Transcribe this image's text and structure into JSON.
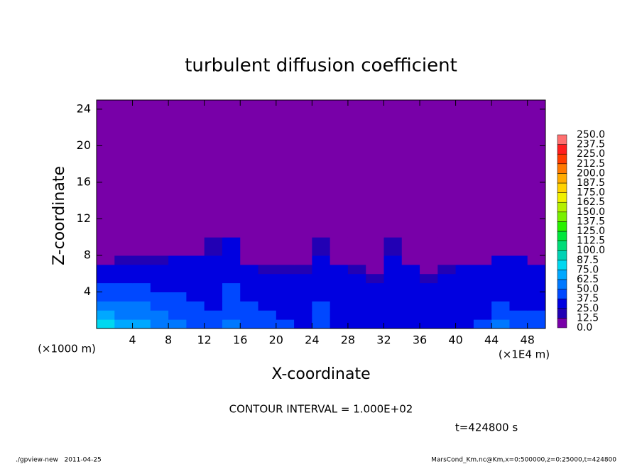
{
  "chart_data": {
    "type": "heatmap",
    "title": "turbulent diffusion coefficient",
    "x_label": "X-coordinate",
    "y_label": "Z-coordinate",
    "x_unit": "(×1E4 m)",
    "y_unit": "(×1000 m)",
    "xlim": [
      0,
      50
    ],
    "ylim": [
      0,
      25
    ],
    "xticks": [
      4,
      8,
      12,
      16,
      20,
      24,
      28,
      32,
      36,
      40,
      44,
      48
    ],
    "yticks": [
      4,
      8,
      12,
      16,
      20,
      24
    ],
    "x_bins": [
      0,
      2,
      4,
      6,
      8,
      10,
      12,
      14,
      16,
      18,
      20,
      22,
      24,
      26,
      28,
      30,
      32,
      34,
      36,
      38,
      40,
      42,
      44,
      46,
      48,
      50
    ],
    "y_bins": [
      0,
      1,
      2,
      3,
      4,
      5,
      6,
      7,
      8,
      10,
      25
    ],
    "values": [
      [
        75,
        70,
        62.5,
        55,
        50,
        45,
        40,
        50,
        45,
        40,
        37.5,
        35,
        40,
        35,
        30,
        30,
        35,
        30,
        30,
        30,
        35,
        40,
        50,
        45,
        45
      ],
      [
        65,
        60,
        55,
        50,
        45,
        40,
        40,
        45,
        40,
        37.5,
        35,
        35,
        40,
        35,
        30,
        30,
        35,
        30,
        30,
        30,
        35,
        35,
        45,
        40,
        40
      ],
      [
        55,
        50,
        50,
        45,
        40,
        40,
        35,
        45,
        40,
        35,
        35,
        30,
        40,
        35,
        30,
        30,
        35,
        30,
        30,
        30,
        30,
        35,
        40,
        35,
        35
      ],
      [
        45,
        45,
        45,
        40,
        40,
        35,
        35,
        40,
        35,
        30,
        30,
        30,
        35,
        30,
        30,
        25,
        35,
        30,
        25,
        25,
        30,
        30,
        35,
        30,
        30
      ],
      [
        40,
        40,
        40,
        35,
        35,
        35,
        30,
        40,
        30,
        30,
        25,
        25,
        35,
        30,
        25,
        25,
        30,
        25,
        25,
        25,
        25,
        30,
        30,
        30,
        30
      ],
      [
        35,
        35,
        35,
        35,
        35,
        30,
        30,
        35,
        30,
        25,
        25,
        25,
        30,
        25,
        25,
        20,
        30,
        25,
        20,
        25,
        25,
        25,
        30,
        30,
        25
      ],
      [
        30,
        30,
        30,
        30,
        30,
        30,
        30,
        35,
        30,
        20,
        20,
        20,
        30,
        25,
        20,
        0,
        30,
        25,
        0,
        20,
        25,
        25,
        30,
        30,
        25
      ],
      [
        0,
        15,
        15,
        20,
        25,
        25,
        30,
        35,
        0,
        0,
        0,
        0,
        25,
        0,
        0,
        0,
        25,
        0,
        0,
        0,
        0,
        0,
        25,
        25,
        0
      ],
      [
        0,
        0,
        0,
        0,
        0,
        0,
        15,
        30,
        0,
        0,
        0,
        0,
        20,
        0,
        0,
        0,
        20,
        0,
        0,
        0,
        0,
        0,
        0,
        0,
        0
      ],
      [
        0,
        0,
        0,
        0,
        0,
        0,
        0,
        0,
        0,
        0,
        0,
        0,
        0,
        0,
        0,
        0,
        0,
        0,
        0,
        0,
        0,
        0,
        0,
        0,
        0
      ]
    ],
    "levels": [
      {
        "value": 0,
        "label": "0.0"
      },
      {
        "value": 12.5,
        "label": "12.5"
      },
      {
        "value": 25,
        "label": "25.0"
      },
      {
        "value": 37.5,
        "label": "37.5"
      },
      {
        "value": 50,
        "label": "50.0"
      },
      {
        "value": 62.5,
        "label": "62.5"
      },
      {
        "value": 75,
        "label": "75.0"
      },
      {
        "value": 87.5,
        "label": "87.5"
      },
      {
        "value": 100,
        "label": "100.0"
      },
      {
        "value": 112.5,
        "label": "112.5"
      },
      {
        "value": 125,
        "label": "125.0"
      },
      {
        "value": 137.5,
        "label": "137.5"
      },
      {
        "value": 150,
        "label": "150.0"
      },
      {
        "value": 162.5,
        "label": "162.5"
      },
      {
        "value": 175,
        "label": "175.0"
      },
      {
        "value": 187.5,
        "label": "187.5"
      },
      {
        "value": 200,
        "label": "200.0"
      },
      {
        "value": 212.5,
        "label": "212.5"
      },
      {
        "value": 225,
        "label": "225.0"
      },
      {
        "value": 237.5,
        "label": "237.5"
      },
      {
        "value": 250,
        "label": "250.0"
      }
    ],
    "colors": [
      "#7800a8",
      "#2200b4",
      "#0000e0",
      "#0048ff",
      "#0078ff",
      "#00a8ff",
      "#00d8f0",
      "#00d2b4",
      "#00dc78",
      "#00e63c",
      "#28f000",
      "#78f000",
      "#b4f000",
      "#f0f000",
      "#ffd200",
      "#ffaa00",
      "#ff7800",
      "#ff3c00",
      "#ff1e1e",
      "#ff7070"
    ],
    "subtitle": "CONTOUR INTERVAL = 1.000E+02",
    "time_label": "t=424800 s",
    "footer_left": "./gpview-new   2011-04-25",
    "footer_right": "MarsCond_Km.nc@Km,x=0:500000,z=0:25000,t=424800"
  }
}
